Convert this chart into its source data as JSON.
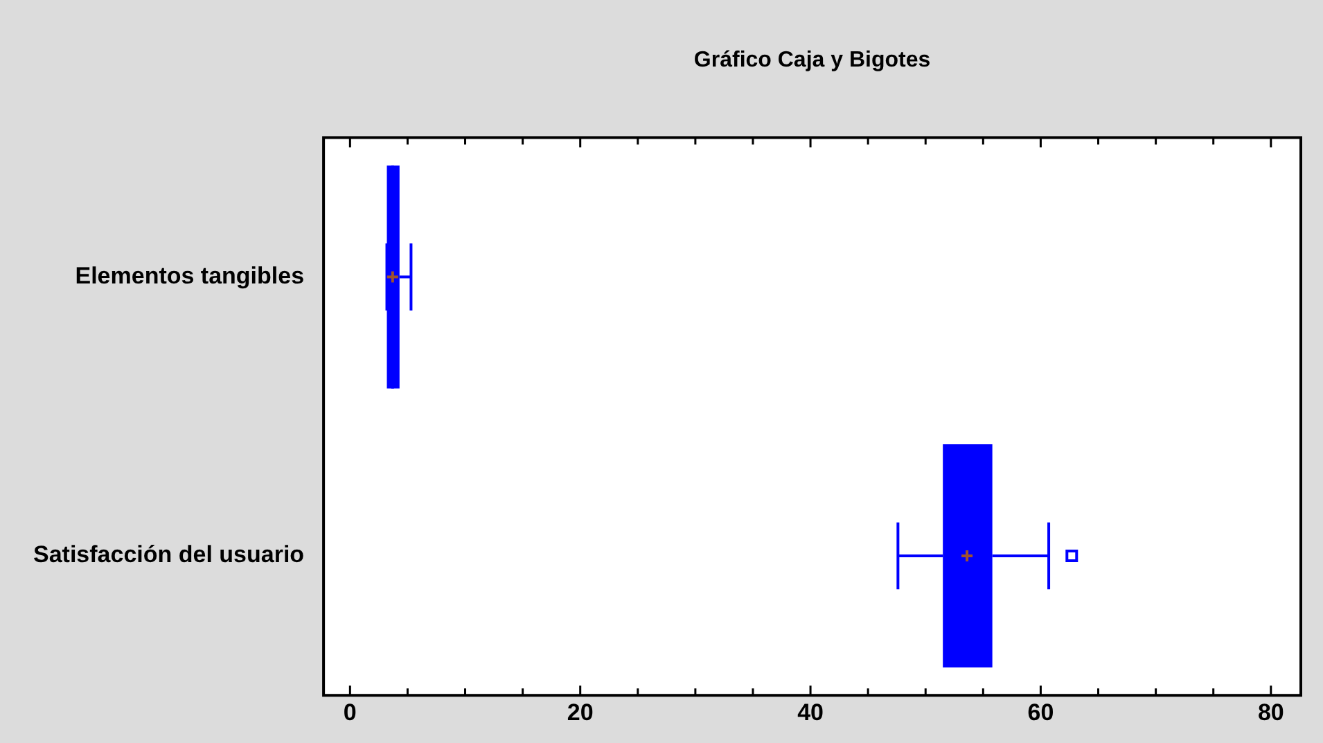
{
  "chart_data": {
    "type": "box",
    "orientation": "horizontal",
    "title": "Gráfico Caja y Bigotes",
    "categories": [
      "Elementos tangibles",
      "Satisfacción del usuario"
    ],
    "color": "#0000ff",
    "boxes": [
      {
        "low": 3.2,
        "q1": 3.2,
        "median": 3.7,
        "q3": 4.3,
        "high": 5.3,
        "mean": 3.7
      },
      {
        "low": 47.6,
        "q1": 51.5,
        "median": 53.6,
        "q3": 55.8,
        "high": 60.7,
        "mean": 53.6,
        "outliers": [
          62.7
        ]
      }
    ],
    "xlim": [
      -2.3,
      82.6
    ],
    "xticks": [
      0,
      {
        "value": 5,
        "label": null
      },
      {
        "value": 10,
        "label": null
      },
      {
        "value": 15,
        "label": null
      },
      20,
      {
        "value": 25,
        "label": null
      },
      {
        "value": 30,
        "label": null
      },
      {
        "value": 35,
        "label": null
      },
      40,
      {
        "value": 45,
        "label": null
      },
      {
        "value": 50,
        "label": null
      },
      {
        "value": 55,
        "label": null
      },
      60,
      {
        "value": 65,
        "label": null
      },
      {
        "value": 70,
        "label": null
      },
      {
        "value": 75,
        "label": null
      },
      80
    ],
    "grid": false,
    "legend": false
  }
}
